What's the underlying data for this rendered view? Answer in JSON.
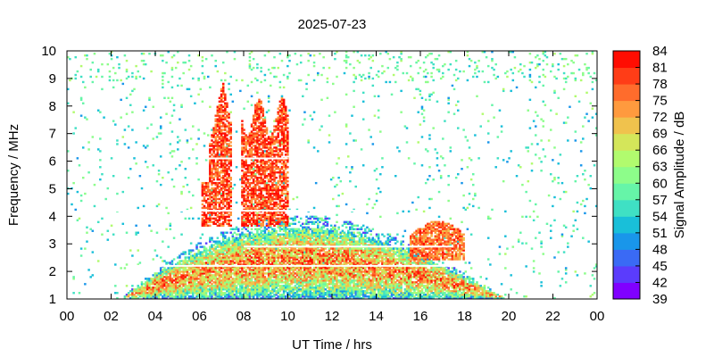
{
  "chart_data": {
    "type": "heatmap",
    "title": "2025-07-23",
    "xlabel": "UT Time / hrs",
    "ylabel": "Frequency / MHz",
    "colorbar_label": "Signal Amplitude / dB",
    "xlim": [
      0,
      24
    ],
    "ylim": [
      1,
      10
    ],
    "x_ticks": [
      "00",
      "02",
      "04",
      "06",
      "08",
      "10",
      "12",
      "14",
      "16",
      "18",
      "20",
      "22",
      "00"
    ],
    "y_ticks": [
      "1",
      "2",
      "3",
      "4",
      "5",
      "6",
      "7",
      "8",
      "9",
      "10"
    ],
    "colorbar": {
      "ticks": [
        "39",
        "42",
        "45",
        "48",
        "51",
        "54",
        "57",
        "60",
        "63",
        "66",
        "69",
        "72",
        "75",
        "78",
        "81",
        "84"
      ],
      "range": [
        39,
        84
      ],
      "colors": [
        "#8000ff",
        "#5b3cfc",
        "#3a6af5",
        "#1996ea",
        "#19bfd9",
        "#3fe0c4",
        "#66f5a8",
        "#8dfd8a",
        "#b1fb6e",
        "#d4e65a",
        "#f0c24d",
        "#ff9a3e",
        "#ff6c2c",
        "#ff3d17",
        "#ff0d02"
      ]
    },
    "features": [
      {
        "name": "daytime band",
        "x_range": [
          2.5,
          19.8
        ],
        "y_peak": 4.0
      },
      {
        "name": "storm bursts",
        "x_range": [
          6.3,
          10.0
        ],
        "y_max": 8.9
      },
      {
        "name": "evening enhancement",
        "x_range": [
          15.5,
          18.0
        ],
        "y_max": 3.8
      }
    ],
    "grid": false,
    "legend": "colorbar-right"
  }
}
